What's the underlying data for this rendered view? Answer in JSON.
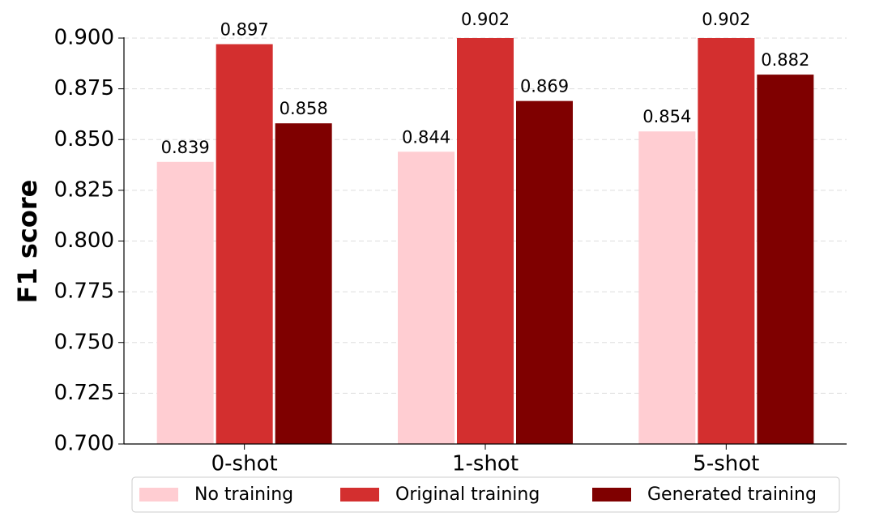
{
  "chart_data": {
    "type": "grouped-bar",
    "ylabel": "F1 score",
    "categories": [
      "0-shot",
      "1-shot",
      "5-shot"
    ],
    "series": [
      {
        "name": "No training",
        "color": "#ffcdd2",
        "values": [
          0.839,
          0.844,
          0.854
        ]
      },
      {
        "name": "Original training",
        "color": "#d32f2f",
        "values": [
          0.897,
          0.902,
          0.902
        ]
      },
      {
        "name": "Generated training",
        "color": "#7f0000",
        "values": [
          0.858,
          0.869,
          0.882
        ]
      }
    ],
    "ylim": [
      0.7,
      0.9
    ],
    "yticks": [
      {
        "value": 0.7,
        "label": "0.700"
      },
      {
        "value": 0.725,
        "label": "0.725"
      },
      {
        "value": 0.75,
        "label": "0.750"
      },
      {
        "value": 0.775,
        "label": "0.775"
      },
      {
        "value": 0.8,
        "label": "0.800"
      },
      {
        "value": 0.825,
        "label": "0.825"
      },
      {
        "value": 0.85,
        "label": "0.850"
      },
      {
        "value": 0.875,
        "label": "0.875"
      },
      {
        "value": 0.9,
        "label": "0.900"
      }
    ],
    "grid": true,
    "legend": "bottom"
  }
}
